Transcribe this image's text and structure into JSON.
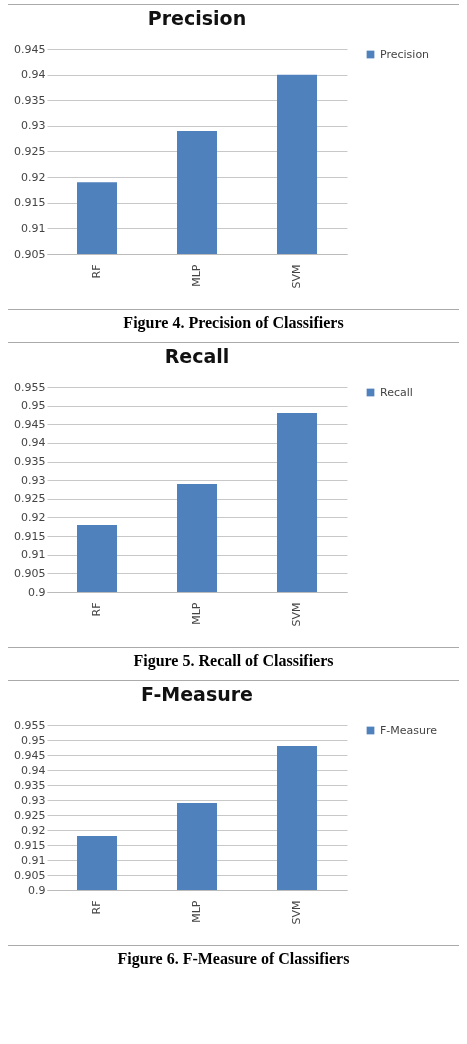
{
  "chart_data": [
    {
      "type": "bar",
      "title": "Precision",
      "categories": [
        "RF",
        "MLP",
        "SVM"
      ],
      "series": [
        {
          "name": "Precision",
          "color": "#4f81bd",
          "values": [
            0.919,
            0.929,
            0.94
          ]
        }
      ],
      "ylim": [
        0.905,
        0.945
      ],
      "yticks": [
        0.905,
        0.91,
        0.915,
        0.92,
        0.925,
        0.93,
        0.935,
        0.94,
        0.945
      ],
      "grid": "y",
      "legend": "right",
      "annotations": [
        "Figure 4. Precision of Classifiers"
      ]
    },
    {
      "type": "bar",
      "title": "Recall",
      "categories": [
        "RF",
        "MLP",
        "SVM"
      ],
      "series": [
        {
          "name": "Recall",
          "color": "#4f81bd",
          "values": [
            0.918,
            0.929,
            0.948
          ]
        }
      ],
      "ylim": [
        0.9,
        0.955
      ],
      "yticks": [
        0.9,
        0.905,
        0.91,
        0.915,
        0.92,
        0.925,
        0.93,
        0.935,
        0.94,
        0.945,
        0.95,
        0.955
      ],
      "grid": "y",
      "legend": "right",
      "annotations": [
        "Figure 5. Recall of Classifiers"
      ]
    },
    {
      "type": "bar",
      "title": "F-Measure",
      "categories": [
        "RF",
        "MLP",
        "SVM"
      ],
      "series": [
        {
          "name": "F-Measure",
          "color": "#4f81bd",
          "values": [
            0.918,
            0.929,
            0.948
          ]
        }
      ],
      "ylim": [
        0.9,
        0.955
      ],
      "yticks": [
        0.9,
        0.905,
        0.91,
        0.915,
        0.92,
        0.925,
        0.93,
        0.935,
        0.94,
        0.945,
        0.95,
        0.955
      ],
      "grid": "y",
      "legend": "right",
      "annotations": [
        "Figure 6. F-Measure of Classifiers"
      ]
    }
  ]
}
